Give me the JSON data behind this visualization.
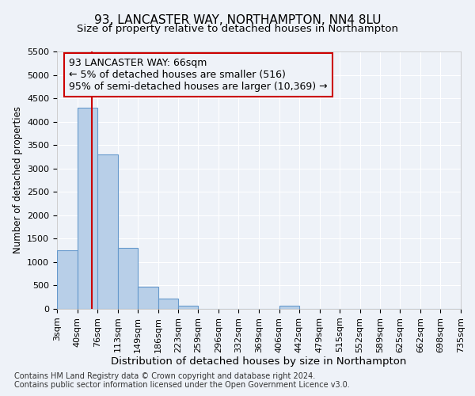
{
  "title_line1": "93, LANCASTER WAY, NORTHAMPTON, NN4 8LU",
  "title_line2": "Size of property relative to detached houses in Northampton",
  "xlabel": "Distribution of detached houses by size in Northampton",
  "ylabel": "Number of detached properties",
  "footnote1": "Contains HM Land Registry data © Crown copyright and database right 2024.",
  "footnote2": "Contains public sector information licensed under the Open Government Licence v3.0.",
  "annotation_line1": "93 LANCASTER WAY: 66sqm",
  "annotation_line2": "← 5% of detached houses are smaller (516)",
  "annotation_line3": "95% of semi-detached houses are larger (10,369) →",
  "bar_edges": [
    3,
    40,
    76,
    113,
    149,
    186,
    223,
    259,
    296,
    332,
    369,
    406,
    442,
    479,
    515,
    552,
    589,
    625,
    662,
    698,
    735
  ],
  "bar_heights": [
    1250,
    4300,
    3300,
    1300,
    480,
    225,
    75,
    0,
    0,
    0,
    0,
    75,
    0,
    0,
    0,
    0,
    0,
    0,
    0,
    0
  ],
  "bar_color": "#b8cfe8",
  "bar_edge_color": "#6699cc",
  "red_line_x": 66,
  "ylim": [
    0,
    5500
  ],
  "yticks": [
    0,
    500,
    1000,
    1500,
    2000,
    2500,
    3000,
    3500,
    4000,
    4500,
    5000,
    5500
  ],
  "background_color": "#eef2f8",
  "annotation_box_color": "#cc0000",
  "grid_color": "#ffffff",
  "title1_fontsize": 11,
  "title2_fontsize": 9.5,
  "xlabel_fontsize": 9.5,
  "ylabel_fontsize": 8.5,
  "tick_fontsize": 8,
  "annotation_fontsize": 9,
  "footnote_fontsize": 7
}
